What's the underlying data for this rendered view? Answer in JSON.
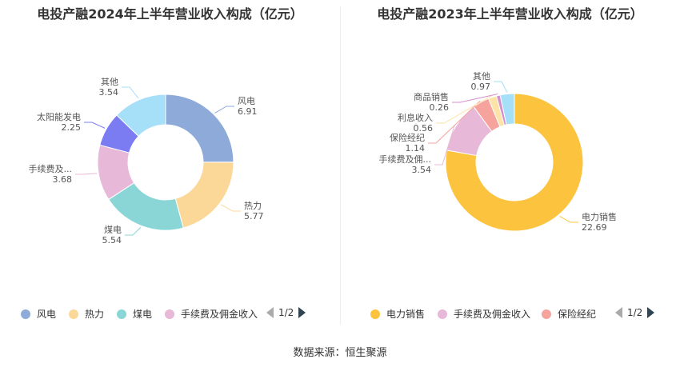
{
  "source": "数据来源：恒生聚源",
  "chart_data": [
    {
      "type": "pie",
      "variant": "donut",
      "title": "电投产融2024年上半年营业收入构成（亿元）",
      "categories": [
        "风电",
        "热力",
        "煤电",
        "手续费及佣金收入",
        "太阳能发电",
        "其他"
      ],
      "label_names": [
        "风电",
        "热力",
        "煤电",
        "手续费及...",
        "太阳能发电",
        "其他"
      ],
      "values": [
        6.91,
        5.77,
        5.54,
        3.68,
        2.25,
        3.54
      ],
      "value_labels": [
        "6.91",
        "5.77",
        "5.54",
        "3.68",
        "2.25",
        "3.54"
      ],
      "colors": [
        "#8eaad9",
        "#fcd898",
        "#8ad6d6",
        "#e8b8d8",
        "#7b7cf2",
        "#a6dff8"
      ],
      "legend": {
        "position": "bottom",
        "visible_items": [
          {
            "label": "风电",
            "color": "#8eaad9"
          },
          {
            "label": "热力",
            "color": "#fcd898"
          },
          {
            "label": "煤电",
            "color": "#8ad6d6"
          },
          {
            "label": "手续费及佣金收入",
            "color": "#e8b8d8"
          }
        ],
        "page": "1/2"
      }
    },
    {
      "type": "pie",
      "variant": "donut",
      "title": "电投产融2023年上半年营业收入构成（亿元）",
      "categories": [
        "电力销售",
        "手续费及佣金收入",
        "保险经纪",
        "利息收入",
        "商品销售",
        "其他"
      ],
      "label_names": [
        "电力销售",
        "手续费及佣...",
        "保险经纪",
        "利息收入",
        "商品销售",
        "其他"
      ],
      "values": [
        22.69,
        3.54,
        1.14,
        0.56,
        0.26,
        0.97
      ],
      "value_labels": [
        "22.69",
        "3.54",
        "1.14",
        "0.56",
        "0.26",
        "0.97"
      ],
      "colors": [
        "#fcc33f",
        "#e8b8d8",
        "#f5a39c",
        "#fde3a7",
        "#d58fcf",
        "#a6dff8"
      ],
      "legend": {
        "position": "bottom",
        "visible_items": [
          {
            "label": "电力销售",
            "color": "#fcc33f"
          },
          {
            "label": "手续费及佣金收入",
            "color": "#e8b8d8"
          },
          {
            "label": "保险经纪",
            "color": "#f5a39c"
          }
        ],
        "page": "1/2"
      }
    }
  ]
}
